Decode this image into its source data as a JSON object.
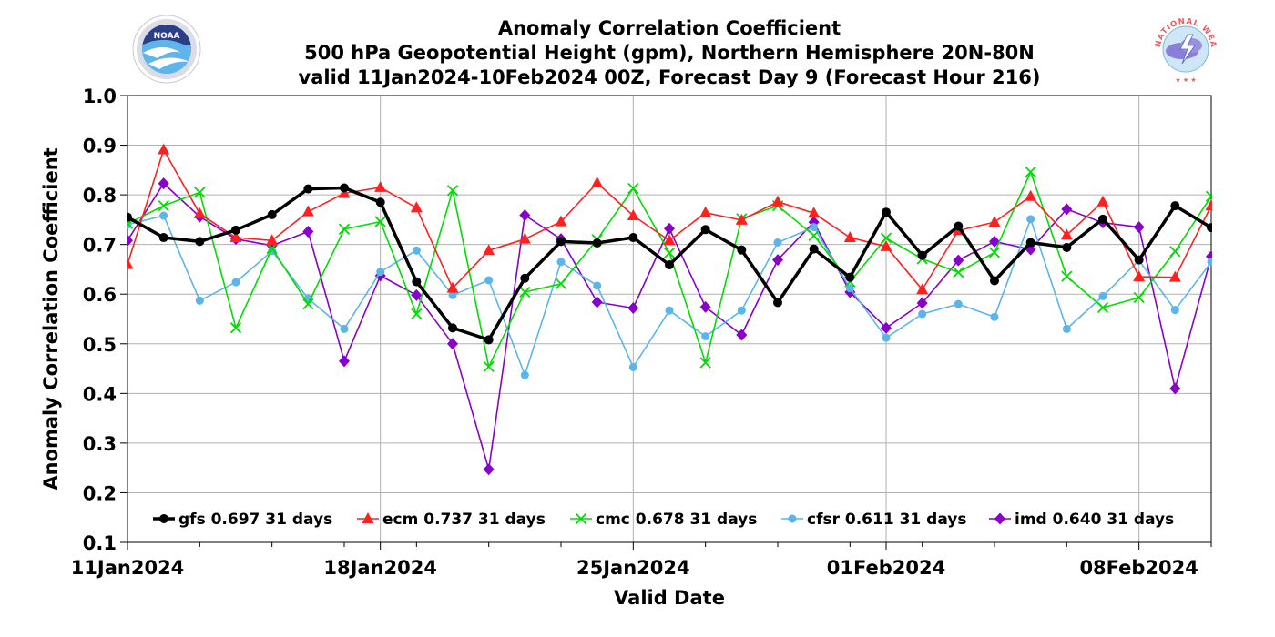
{
  "header": {
    "title": "Anomaly Correlation Coefficient",
    "subtitle1": "500 hPa Geopotential Height (gpm), Northern Hemisphere 20N-80N",
    "subtitle2": "valid 11Jan2024-10Feb2024 00Z, Forecast Day 9 (Forecast Hour 216)"
  },
  "logos": {
    "left_text": "NOAA",
    "right_text": "NATIONAL WEATHER SERVICE"
  },
  "chart_data": {
    "type": "line",
    "xlabel": "Valid Date",
    "ylabel": "Anomaly Correlation Coefficient",
    "ylim": [
      0.1,
      1.0
    ],
    "yticks": [
      "0.1",
      "0.2",
      "0.3",
      "0.4",
      "0.5",
      "0.6",
      "0.7",
      "0.8",
      "0.9",
      "1.0"
    ],
    "xticks": [
      {
        "label": "11Jan2024",
        "day": 0
      },
      {
        "label": "18Jan2024",
        "day": 7
      },
      {
        "label": "25Jan2024",
        "day": 14
      },
      {
        "label": "01Feb2024",
        "day": 21
      },
      {
        "label": "08Feb2024",
        "day": 28
      }
    ],
    "grid": true,
    "legend_position": "bottom",
    "series": [
      {
        "name": "gfs 0.697 31 days",
        "color": "#000000",
        "marker": "circle",
        "width": 3.5,
        "values": [
          0.755,
          0.714,
          0.706,
          0.729,
          0.76,
          0.812,
          0.814,
          0.785,
          0.625,
          0.532,
          0.508,
          0.632,
          0.706,
          0.703,
          0.714,
          0.659,
          0.73,
          0.689,
          0.583,
          0.691,
          0.634,
          0.765,
          0.678,
          0.737,
          0.627,
          0.704,
          0.694,
          0.751,
          0.669,
          0.778,
          0.734
        ]
      },
      {
        "name": "ecm 0.737 31 days",
        "color": "#ff2020",
        "marker": "triangle",
        "width": 1.6,
        "values": [
          0.66,
          0.891,
          0.762,
          0.714,
          0.708,
          0.766,
          0.803,
          0.815,
          0.774,
          0.612,
          0.688,
          0.711,
          0.746,
          0.824,
          0.758,
          0.708,
          0.764,
          0.749,
          0.786,
          0.763,
          0.714,
          0.696,
          0.609,
          0.728,
          0.745,
          0.797,
          0.719,
          0.786,
          0.635,
          0.634,
          0.778
        ]
      },
      {
        "name": "cmc 0.678 31 days",
        "color": "#00dd00",
        "marker": "x",
        "width": 1.6,
        "values": [
          0.742,
          0.778,
          0.805,
          0.532,
          0.692,
          0.58,
          0.731,
          0.746,
          0.56,
          0.809,
          0.454,
          0.604,
          0.621,
          0.71,
          0.813,
          0.683,
          0.462,
          0.752,
          0.778,
          0.718,
          0.625,
          0.713,
          0.671,
          0.644,
          0.684,
          0.846,
          0.636,
          0.573,
          0.593,
          0.686,
          0.797
        ]
      },
      {
        "name": "cfsr 0.611 31 days",
        "color": "#5bb5ea",
        "marker": "circle-small",
        "width": 1.6,
        "values": [
          0.74,
          0.758,
          0.587,
          0.624,
          0.687,
          0.591,
          0.53,
          0.645,
          0.688,
          0.598,
          0.628,
          0.437,
          0.665,
          0.617,
          0.453,
          0.567,
          0.515,
          0.567,
          0.704,
          0.735,
          0.612,
          0.512,
          0.56,
          0.58,
          0.554,
          0.751,
          0.53,
          0.596,
          0.668,
          0.568,
          0.665
        ]
      },
      {
        "name": "imd 0.640 31 days",
        "color": "#8800cc",
        "marker": "diamond",
        "width": 1.6,
        "values": [
          0.708,
          0.823,
          0.756,
          0.711,
          0.698,
          0.726,
          0.465,
          0.637,
          0.598,
          0.5,
          0.247,
          0.759,
          0.711,
          0.584,
          0.572,
          0.732,
          0.574,
          0.518,
          0.669,
          0.745,
          0.604,
          0.532,
          0.582,
          0.668,
          0.706,
          0.69,
          0.771,
          0.744,
          0.735,
          0.41,
          0.676
        ]
      }
    ]
  }
}
